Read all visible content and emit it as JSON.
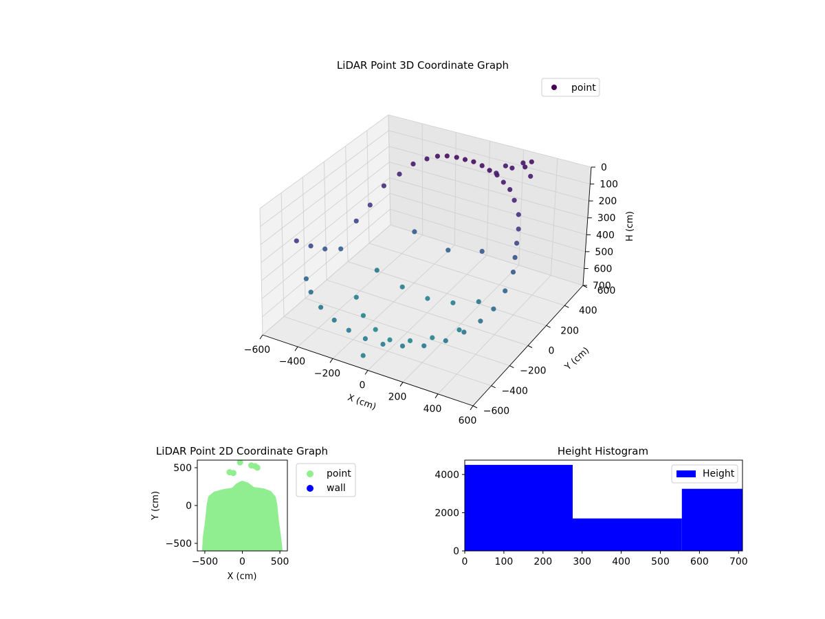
{
  "chart_data": [
    {
      "type": "scatter",
      "subtype": "3d",
      "title": "LiDAR Point 3D Coordinate Graph",
      "xlabel": "X (cm)",
      "ylabel": "Y (cm)",
      "zlabel": "H (cm)",
      "xlim": [
        -600,
        600
      ],
      "ylim": [
        -600,
        600
      ],
      "zlim": [
        0,
        700
      ],
      "z_inverted": true,
      "x_ticks": [
        -600,
        -400,
        -200,
        0,
        200,
        400,
        600
      ],
      "x_tick_labels": [
        "−600",
        "−400",
        "−200",
        "0",
        "200",
        "400",
        "600"
      ],
      "y_ticks": [
        -600,
        -400,
        -200,
        0,
        200,
        400,
        600
      ],
      "y_tick_labels": [
        "−600",
        "−400",
        "−200",
        "0",
        "200",
        "400",
        "600"
      ],
      "z_ticks": [
        0,
        100,
        200,
        300,
        400,
        500,
        600,
        700
      ],
      "z_tick_labels": [
        "0",
        "100",
        "200",
        "300",
        "400",
        "500",
        "600",
        "700"
      ],
      "colormap": "viridis",
      "grid": true,
      "legend": {
        "position": "top-right",
        "entries": [
          "point"
        ]
      },
      "series": [
        {
          "name": "point",
          "color": "#440154"
        }
      ],
      "points": [
        [
          -520,
          -400,
          250
        ],
        [
          -500,
          -300,
          320
        ],
        [
          -480,
          -200,
          380
        ],
        [
          -450,
          -100,
          420
        ],
        [
          -420,
          0,
          300
        ],
        [
          -400,
          100,
          250
        ],
        [
          -380,
          200,
          180
        ],
        [
          -350,
          300,
          150
        ],
        [
          -300,
          350,
          100
        ],
        [
          -250,
          400,
          80
        ],
        [
          -200,
          420,
          60
        ],
        [
          -150,
          430,
          50
        ],
        [
          -100,
          440,
          50
        ],
        [
          -50,
          440,
          50
        ],
        [
          0,
          440,
          50
        ],
        [
          50,
          440,
          60
        ],
        [
          100,
          430,
          70
        ],
        [
          150,
          420,
          80
        ],
        [
          200,
          400,
          100
        ],
        [
          250,
          380,
          120
        ],
        [
          300,
          340,
          150
        ],
        [
          350,
          300,
          200
        ],
        [
          380,
          250,
          250
        ],
        [
          400,
          200,
          300
        ],
        [
          420,
          150,
          350
        ],
        [
          440,
          100,
          400
        ],
        [
          450,
          0,
          450
        ],
        [
          440,
          -100,
          500
        ],
        [
          420,
          -200,
          520
        ],
        [
          380,
          -300,
          540
        ],
        [
          330,
          -400,
          550
        ],
        [
          250,
          -480,
          560
        ],
        [
          150,
          -520,
          570
        ],
        [
          50,
          -540,
          580
        ],
        [
          -50,
          -540,
          580
        ],
        [
          -150,
          -530,
          570
        ],
        [
          -250,
          -500,
          560
        ],
        [
          -350,
          -460,
          540
        ],
        [
          -430,
          -420,
          500
        ],
        [
          -480,
          -380,
          460
        ],
        [
          -300,
          -200,
          600
        ],
        [
          -200,
          -300,
          620
        ],
        [
          -100,
          -350,
          640
        ],
        [
          0,
          -380,
          650
        ],
        [
          100,
          -350,
          640
        ],
        [
          200,
          -300,
          620
        ],
        [
          300,
          -200,
          600
        ],
        [
          -300,
          0,
          550
        ],
        [
          -150,
          0,
          600
        ],
        [
          0,
          0,
          620
        ],
        [
          150,
          0,
          600
        ],
        [
          300,
          0,
          550
        ],
        [
          -200,
          200,
          400
        ],
        [
          0,
          200,
          450
        ],
        [
          200,
          200,
          400
        ],
        [
          100,
          500,
          120
        ],
        [
          120,
          560,
          100
        ],
        [
          170,
          540,
          90
        ],
        [
          240,
          550,
          70
        ],
        [
          250,
          600,
          60
        ],
        [
          280,
          540,
          110
        ],
        [
          200,
          600,
          80
        ],
        [
          0,
          -650,
          600
        ]
      ]
    },
    {
      "type": "scatter",
      "title": "LiDAR Point 2D Coordinate Graph",
      "xlabel": "X (cm)",
      "ylabel": "Y (cm)",
      "xlim": [
        -600,
        600
      ],
      "ylim": [
        -600,
        600
      ],
      "x_ticks": [
        -500,
        0,
        500
      ],
      "x_tick_labels": [
        "−500",
        "0",
        "500"
      ],
      "y_ticks": [
        -500,
        0,
        500
      ],
      "y_tick_labels": [
        "−500",
        "0",
        "500"
      ],
      "grid": false,
      "legend": {
        "position": "outside-right",
        "entries": [
          "point",
          "wall"
        ]
      },
      "series": [
        {
          "name": "point",
          "color": "#90ee90"
        },
        {
          "name": "wall",
          "color": "#0000ff"
        }
      ],
      "point_cloud_outline": [
        [
          -500,
          -600
        ],
        [
          -490,
          -420
        ],
        [
          -460,
          -200
        ],
        [
          -440,
          0
        ],
        [
          -420,
          100
        ],
        [
          -360,
          150
        ],
        [
          -250,
          180
        ],
        [
          -120,
          200
        ],
        [
          -60,
          260
        ],
        [
          0,
          290
        ],
        [
          60,
          270
        ],
        [
          140,
          210
        ],
        [
          280,
          190
        ],
        [
          360,
          160
        ],
        [
          410,
          100
        ],
        [
          430,
          0
        ],
        [
          450,
          -200
        ],
        [
          480,
          -420
        ],
        [
          500,
          -600
        ]
      ],
      "outlier_points": [
        [
          -170,
          440
        ],
        [
          -120,
          430
        ],
        [
          -30,
          570
        ],
        [
          120,
          530
        ],
        [
          170,
          520
        ],
        [
          200,
          500
        ]
      ]
    },
    {
      "type": "bar",
      "subtype": "histogram",
      "title": "Height Histogram",
      "xlabel": "",
      "ylabel": "",
      "bin_edges": [
        0,
        276,
        555,
        710
      ],
      "values": [
        4500,
        1700,
        3250
      ],
      "xlim": [
        0,
        710
      ],
      "ylim": [
        0,
        4750
      ],
      "x_ticks": [
        0,
        100,
        200,
        300,
        400,
        500,
        600,
        700
      ],
      "x_tick_labels": [
        "0",
        "100",
        "200",
        "300",
        "400",
        "500",
        "600",
        "700"
      ],
      "y_ticks": [
        0,
        2000,
        4000
      ],
      "y_tick_labels": [
        "0",
        "2000",
        "4000"
      ],
      "grid": false,
      "legend": {
        "position": "top-right",
        "entries": [
          "Height"
        ]
      },
      "series": [
        {
          "name": "Height",
          "color": "#0000ff"
        }
      ]
    }
  ]
}
